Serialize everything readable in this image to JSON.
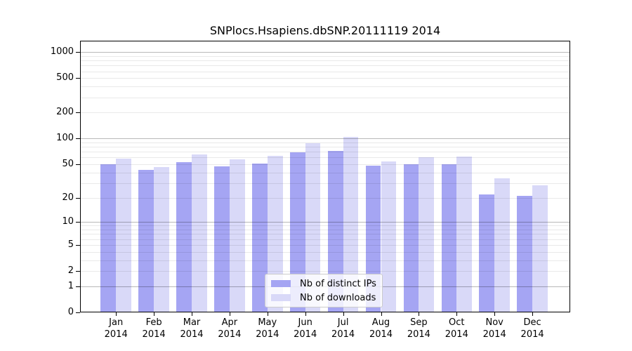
{
  "title": "SNPlocs.Hsapiens.dbSNP.20111119 2014",
  "chart_data": {
    "type": "bar",
    "title": "SNPlocs.Hsapiens.dbSNP.20111119 2014",
    "categories": [
      "Jan",
      "Feb",
      "Mar",
      "Apr",
      "May",
      "Jun",
      "Jul",
      "Aug",
      "Sep",
      "Oct",
      "Nov",
      "Dec"
    ],
    "year": "2014",
    "series": [
      {
        "name": "Nb of distinct IPs",
        "color": "#a5a5f3",
        "values": [
          50,
          43,
          53,
          47,
          51,
          69,
          71,
          48,
          50,
          50,
          22,
          21
        ]
      },
      {
        "name": "Nb of downloads",
        "color": "#d9d9f8",
        "values": [
          58,
          46,
          65,
          57,
          63,
          88,
          105,
          54,
          61,
          62,
          34,
          28
        ]
      }
    ],
    "y_scale": "log10(value+1)",
    "y_ticks": [
      0,
      1,
      2,
      5,
      10,
      20,
      50,
      100,
      200,
      500,
      1000
    ],
    "y_decade_gridlines": [
      1,
      10,
      100,
      1000
    ],
    "ylim": [
      0,
      1350
    ],
    "grid": "horizontal minor log gridlines drawn over bars",
    "legend_position": "inside-bottom-center",
    "xlabel": "",
    "ylabel": ""
  },
  "colors": {
    "bar_distinct_ips": "#a5a5f3",
    "bar_downloads": "#d9d9f8",
    "major_gridline": "rgba(0,0,0,0.28)",
    "minor_gridline": "rgba(0,0,0,0.085)",
    "axis": "#000000",
    "legend_border": "#cccccc"
  }
}
